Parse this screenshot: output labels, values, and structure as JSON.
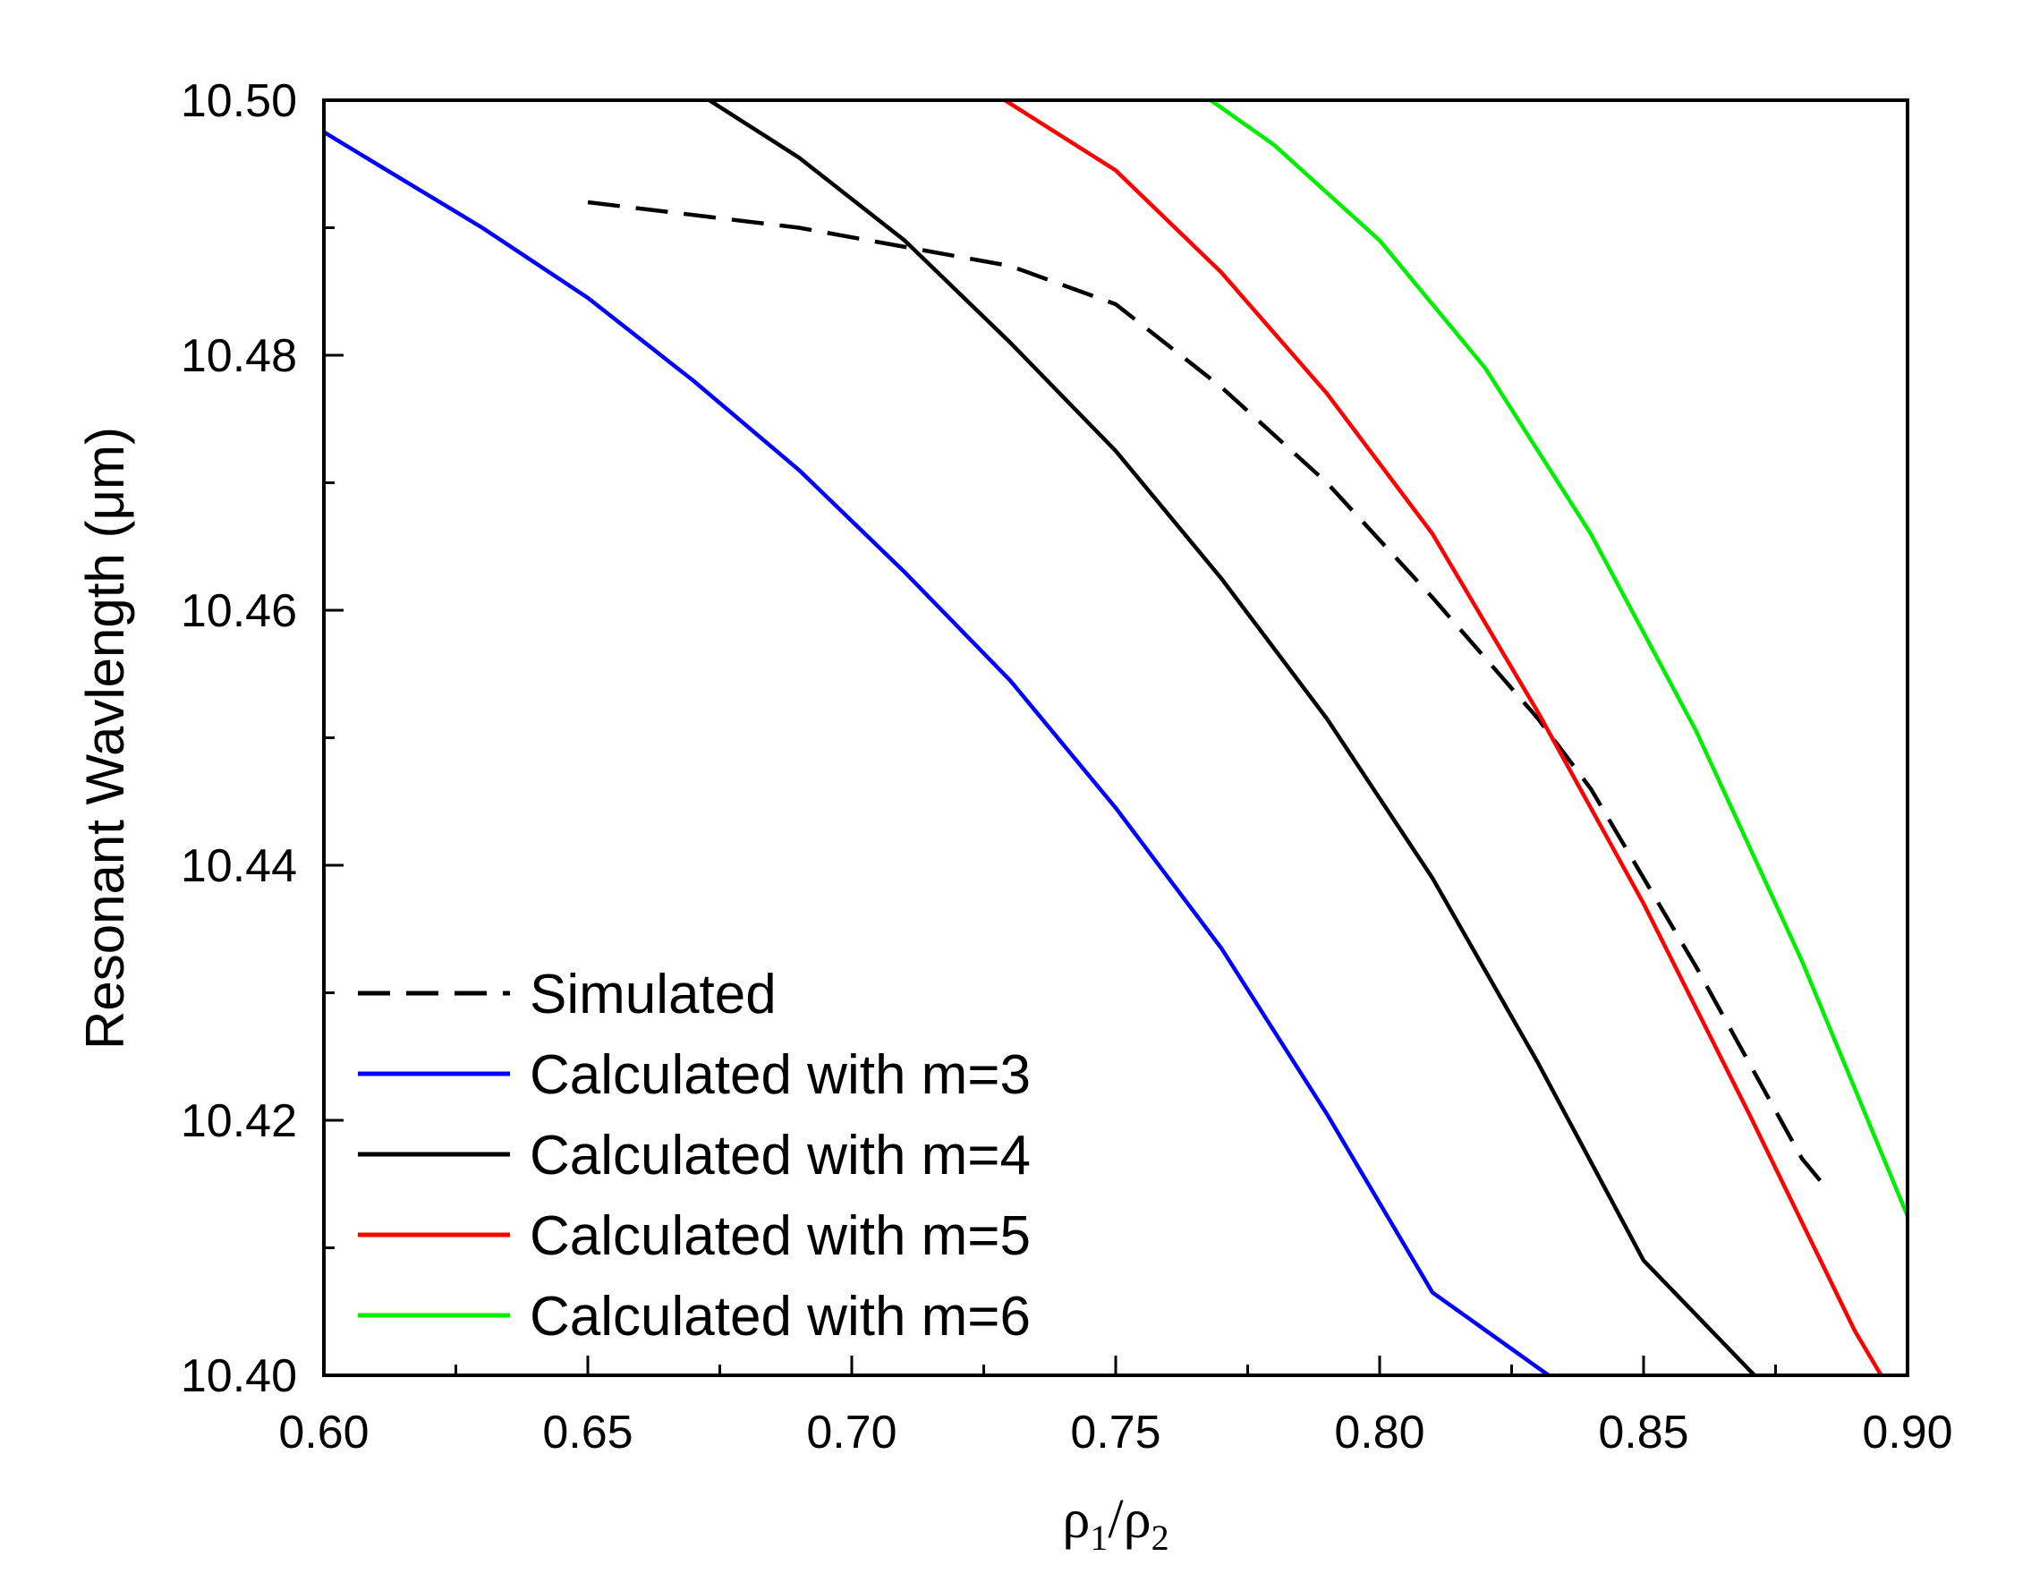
{
  "chart_data": {
    "type": "line",
    "title": "",
    "xlabel": {
      "symbol": "ρ",
      "sub1": "1",
      "sep": "/",
      "sub2": "2"
    },
    "ylabel": "Resonant Wavlength (μm)",
    "xlim": [
      0.6,
      0.9
    ],
    "ylim": [
      10.4,
      10.5
    ],
    "xticks": [
      "0.60",
      "0.65",
      "0.70",
      "0.75",
      "0.80",
      "0.85",
      "0.90"
    ],
    "yticks": [
      "10.40",
      "10.42",
      "10.44",
      "10.46",
      "10.48",
      "10.50"
    ],
    "legend_position": "bottom-left",
    "series": [
      {
        "name": "Simulated",
        "color": "#000000",
        "dash": true,
        "x": [
          0.65,
          0.69,
          0.71,
          0.73,
          0.75,
          0.77,
          0.79,
          0.81,
          0.83,
          0.84,
          0.85,
          0.86,
          0.87,
          0.88,
          0.885
        ],
        "y": [
          10.492,
          10.49,
          10.4885,
          10.487,
          10.484,
          10.4775,
          10.47,
          10.461,
          10.4515,
          10.446,
          10.439,
          10.432,
          10.4245,
          10.417,
          10.4145
        ]
      },
      {
        "name": "Calculated with m=3",
        "color": "#0000ff",
        "dash": false,
        "x": [
          0.6,
          0.61,
          0.63,
          0.65,
          0.67,
          0.69,
          0.71,
          0.73,
          0.75,
          0.77,
          0.79,
          0.81,
          0.832
        ],
        "y": [
          10.4975,
          10.495,
          10.49,
          10.4845,
          10.478,
          10.471,
          10.463,
          10.4545,
          10.4445,
          10.4335,
          10.4205,
          10.4065,
          10.4
        ]
      },
      {
        "name": "Calculated with m=4",
        "color": "#000000",
        "dash": false,
        "x": [
          0.673,
          0.69,
          0.71,
          0.73,
          0.75,
          0.77,
          0.79,
          0.81,
          0.83,
          0.85,
          0.871
        ],
        "y": [
          10.5,
          10.4955,
          10.489,
          10.481,
          10.4725,
          10.4625,
          10.4515,
          10.439,
          10.4245,
          10.409,
          10.4
        ]
      },
      {
        "name": "Calculated with m=5",
        "color": "#ff0000",
        "dash": false,
        "x": [
          0.729,
          0.75,
          0.77,
          0.79,
          0.81,
          0.83,
          0.85,
          0.87,
          0.89,
          0.895
        ],
        "y": [
          10.5,
          10.4945,
          10.4865,
          10.477,
          10.466,
          10.452,
          10.437,
          10.4205,
          10.4035,
          10.4
        ]
      },
      {
        "name": "Calculated with m=6",
        "color": "#00ee00",
        "dash": false,
        "x": [
          0.768,
          0.78,
          0.8,
          0.82,
          0.84,
          0.86,
          0.88,
          0.9
        ],
        "y": [
          10.5,
          10.4965,
          10.489,
          10.479,
          10.466,
          10.4505,
          10.4325,
          10.4125
        ]
      }
    ]
  }
}
